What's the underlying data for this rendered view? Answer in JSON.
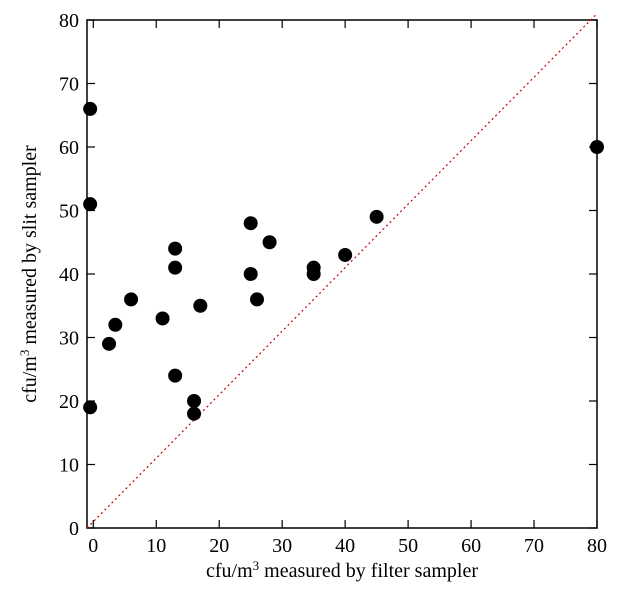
{
  "chart_data": {
    "type": "scatter",
    "xlabel": {
      "pre": "cfu/m",
      "sup": "3",
      "post": " measured by filter sampler"
    },
    "ylabel": {
      "pre": "cfu/m",
      "sup": "3",
      "post": " measured by slit sampler"
    },
    "xlim": [
      -1,
      80
    ],
    "ylim": [
      0,
      80
    ],
    "x_ticks": [
      0,
      10,
      20,
      30,
      40,
      50,
      60,
      70,
      80
    ],
    "y_ticks": [
      0,
      10,
      20,
      30,
      40,
      50,
      60,
      70,
      80
    ],
    "reference_line": {
      "from": [
        -1,
        0
      ],
      "to": [
        80,
        81
      ],
      "style": "dotted",
      "color": "#cc0000"
    },
    "marker_color": "#000000",
    "points": [
      {
        "x": -0.5,
        "y": 66
      },
      {
        "x": -0.5,
        "y": 51
      },
      {
        "x": -0.5,
        "y": 19
      },
      {
        "x": 2.5,
        "y": 29
      },
      {
        "x": 3.5,
        "y": 32
      },
      {
        "x": 6,
        "y": 36
      },
      {
        "x": 11,
        "y": 33
      },
      {
        "x": 13,
        "y": 44
      },
      {
        "x": 13,
        "y": 41
      },
      {
        "x": 13,
        "y": 24
      },
      {
        "x": 16,
        "y": 20
      },
      {
        "x": 16,
        "y": 18
      },
      {
        "x": 17,
        "y": 35
      },
      {
        "x": 25,
        "y": 48
      },
      {
        "x": 25,
        "y": 40
      },
      {
        "x": 26,
        "y": 36
      },
      {
        "x": 28,
        "y": 45
      },
      {
        "x": 35,
        "y": 41
      },
      {
        "x": 35,
        "y": 40
      },
      {
        "x": 40,
        "y": 43
      },
      {
        "x": 45,
        "y": 49
      },
      {
        "x": 80,
        "y": 60
      }
    ]
  }
}
